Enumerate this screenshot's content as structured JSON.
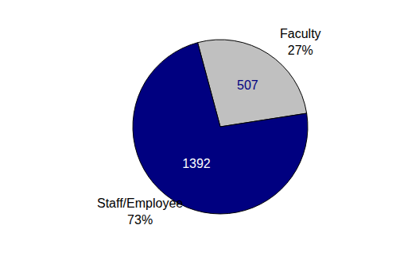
{
  "chart_data": {
    "type": "pie",
    "categories": [
      "Faculty",
      "Staff/Employee"
    ],
    "values": [
      507,
      1392
    ],
    "percentages": [
      {
        "value": 27,
        "label": "27%"
      },
      {
        "value": 73,
        "label": "73%"
      }
    ],
    "colors": [
      "#c0c0c0",
      "#000080"
    ],
    "data_labels": true
  }
}
